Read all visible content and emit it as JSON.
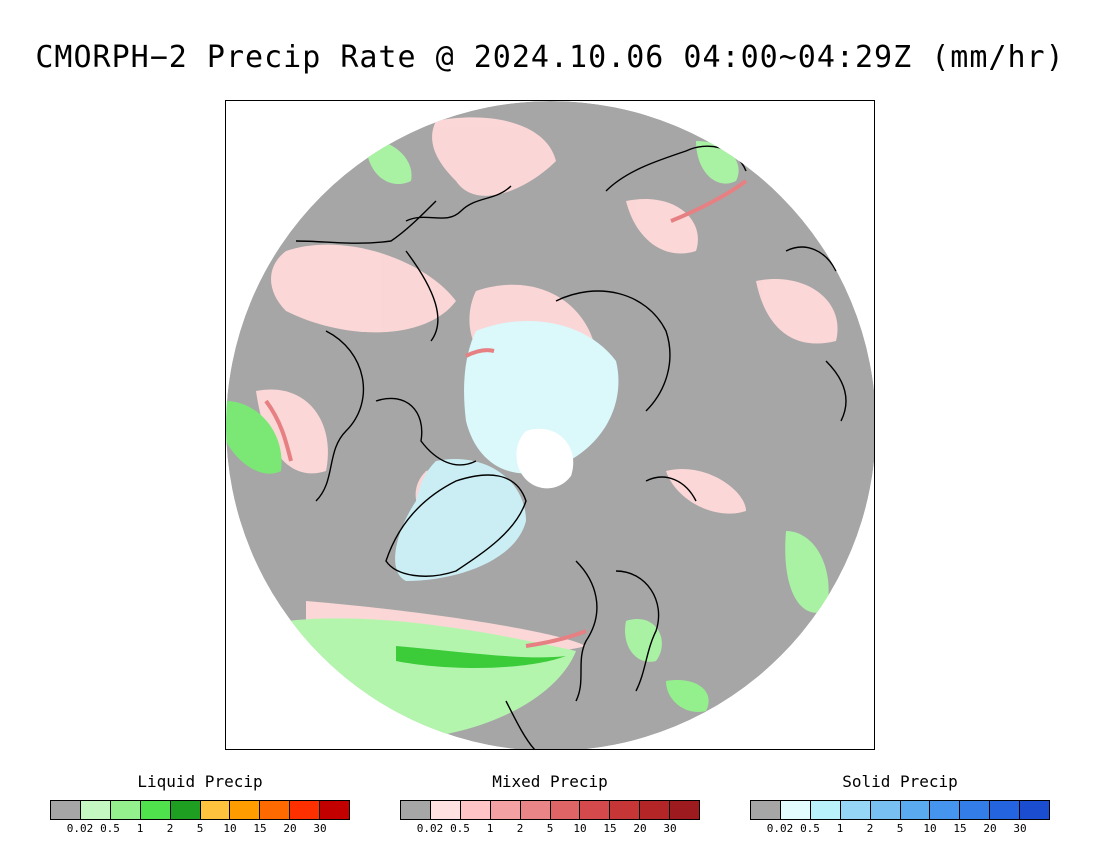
{
  "title": "CMORPH−2 Precip Rate @ 2024.10.06 04:00~04:29Z (mm/hr)",
  "legends": [
    {
      "title": "Liquid Precip",
      "colors": [
        "#a6a6a6",
        "#c5f7c3",
        "#94ef8d",
        "#50e24c",
        "#1f9f22",
        "#ffc33d",
        "#ff9c00",
        "#ff6a00",
        "#ff3000",
        "#c20000"
      ],
      "ticks": [
        "0.02",
        "0.5",
        "1",
        "2",
        "5",
        "10",
        "15",
        "20",
        "30"
      ]
    },
    {
      "title": "Mixed Precip",
      "colors": [
        "#a6a6a6",
        "#ffe1e1",
        "#ffc5c6",
        "#f3a1a3",
        "#ea8587",
        "#de6466",
        "#d44a4c",
        "#c63637",
        "#b42527",
        "#9d1b1f"
      ],
      "ticks": [
        "0.02",
        "0.5",
        "1",
        "2",
        "5",
        "10",
        "15",
        "20",
        "30"
      ]
    },
    {
      "title": "Solid Precip",
      "colors": [
        "#a6a6a6",
        "#e3fdff",
        "#b9f2fb",
        "#95d6f6",
        "#78bff2",
        "#5aaaef",
        "#4595ee",
        "#337de9",
        "#2464df",
        "#1a4dcf"
      ],
      "ticks": [
        "0.02",
        "0.5",
        "1",
        "2",
        "5",
        "10",
        "15",
        "20",
        "30"
      ]
    }
  ],
  "map": {
    "projection": "polar stereographic (north pole)",
    "background_color": "#a6a6a6",
    "coastline_color": "#000000"
  }
}
